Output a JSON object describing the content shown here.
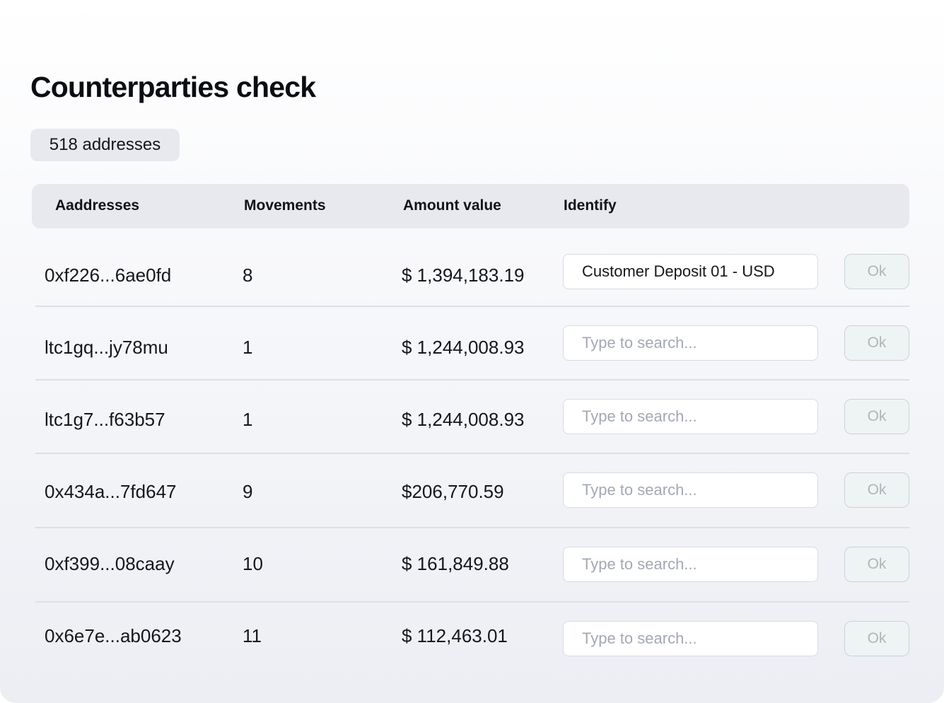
{
  "page": {
    "title": "Counterparties check",
    "address_count": "518 addresses"
  },
  "table": {
    "headers": {
      "addresses": "Aaddresses",
      "movements": "Movements",
      "amount": "Amount value",
      "identify": "Identify"
    },
    "rows": [
      {
        "address": "0xf226...6ae0fd",
        "movements": "8",
        "amount": "$ 1,394,183.19",
        "identify_value": "Customer Deposit 01 - USD",
        "identify_placeholder": "Type to search...",
        "button": "Ok"
      },
      {
        "address": "ltc1gq...jy78mu",
        "movements": "1",
        "amount": "$ 1,244,008.93",
        "identify_value": "",
        "identify_placeholder": "Type to search...",
        "button": "Ok"
      },
      {
        "address": "ltc1g7...f63b57",
        "movements": "1",
        "amount": "$ 1,244,008.93",
        "identify_value": "",
        "identify_placeholder": "Type to search...",
        "button": "Ok"
      },
      {
        "address": "0x434a...7fd647",
        "movements": "9",
        "amount": "$206,770.59",
        "identify_value": "",
        "identify_placeholder": "Type to search...",
        "button": "Ok"
      },
      {
        "address": "0xf399...08caay",
        "movements": "10",
        "amount": "$ 161,849.88",
        "identify_value": "",
        "identify_placeholder": "Type to search...",
        "button": "Ok"
      },
      {
        "address": "0x6e7e...ab0623",
        "movements": "11",
        "amount": "$ 112,463.01",
        "identify_value": "",
        "identify_placeholder": "Type to search...",
        "button": "Ok"
      }
    ]
  },
  "colors": {
    "header_bg": "#e7e9ee",
    "ok_button_bg": "#eef4f3",
    "ok_button_text": "#aeb6bb",
    "placeholder_text": "#a3a8b2"
  }
}
